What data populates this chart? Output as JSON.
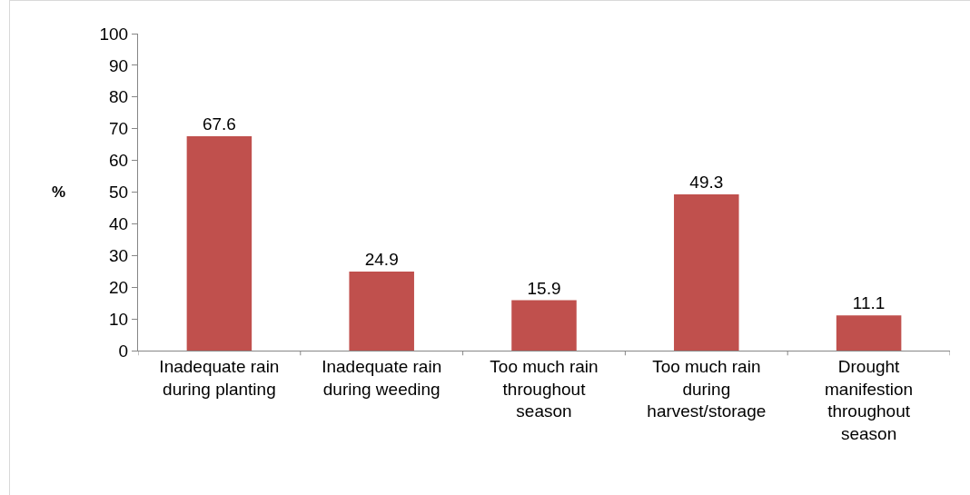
{
  "chart_data": {
    "type": "bar",
    "ylabel": "%",
    "categories": [
      "Inadequate rain during planting",
      "Inadequate rain during weeding",
      "Too much rain throughout season",
      "Too much rain during harvest/storage",
      "Drought manifestion throughout season"
    ],
    "values": [
      67.6,
      24.9,
      15.9,
      49.3,
      11.1
    ],
    "color": "#c0504d",
    "ylim": [
      0,
      100
    ],
    "yticks": [
      0,
      10,
      20,
      30,
      40,
      50,
      60,
      70,
      80,
      90,
      100
    ],
    "data_labels": true
  }
}
